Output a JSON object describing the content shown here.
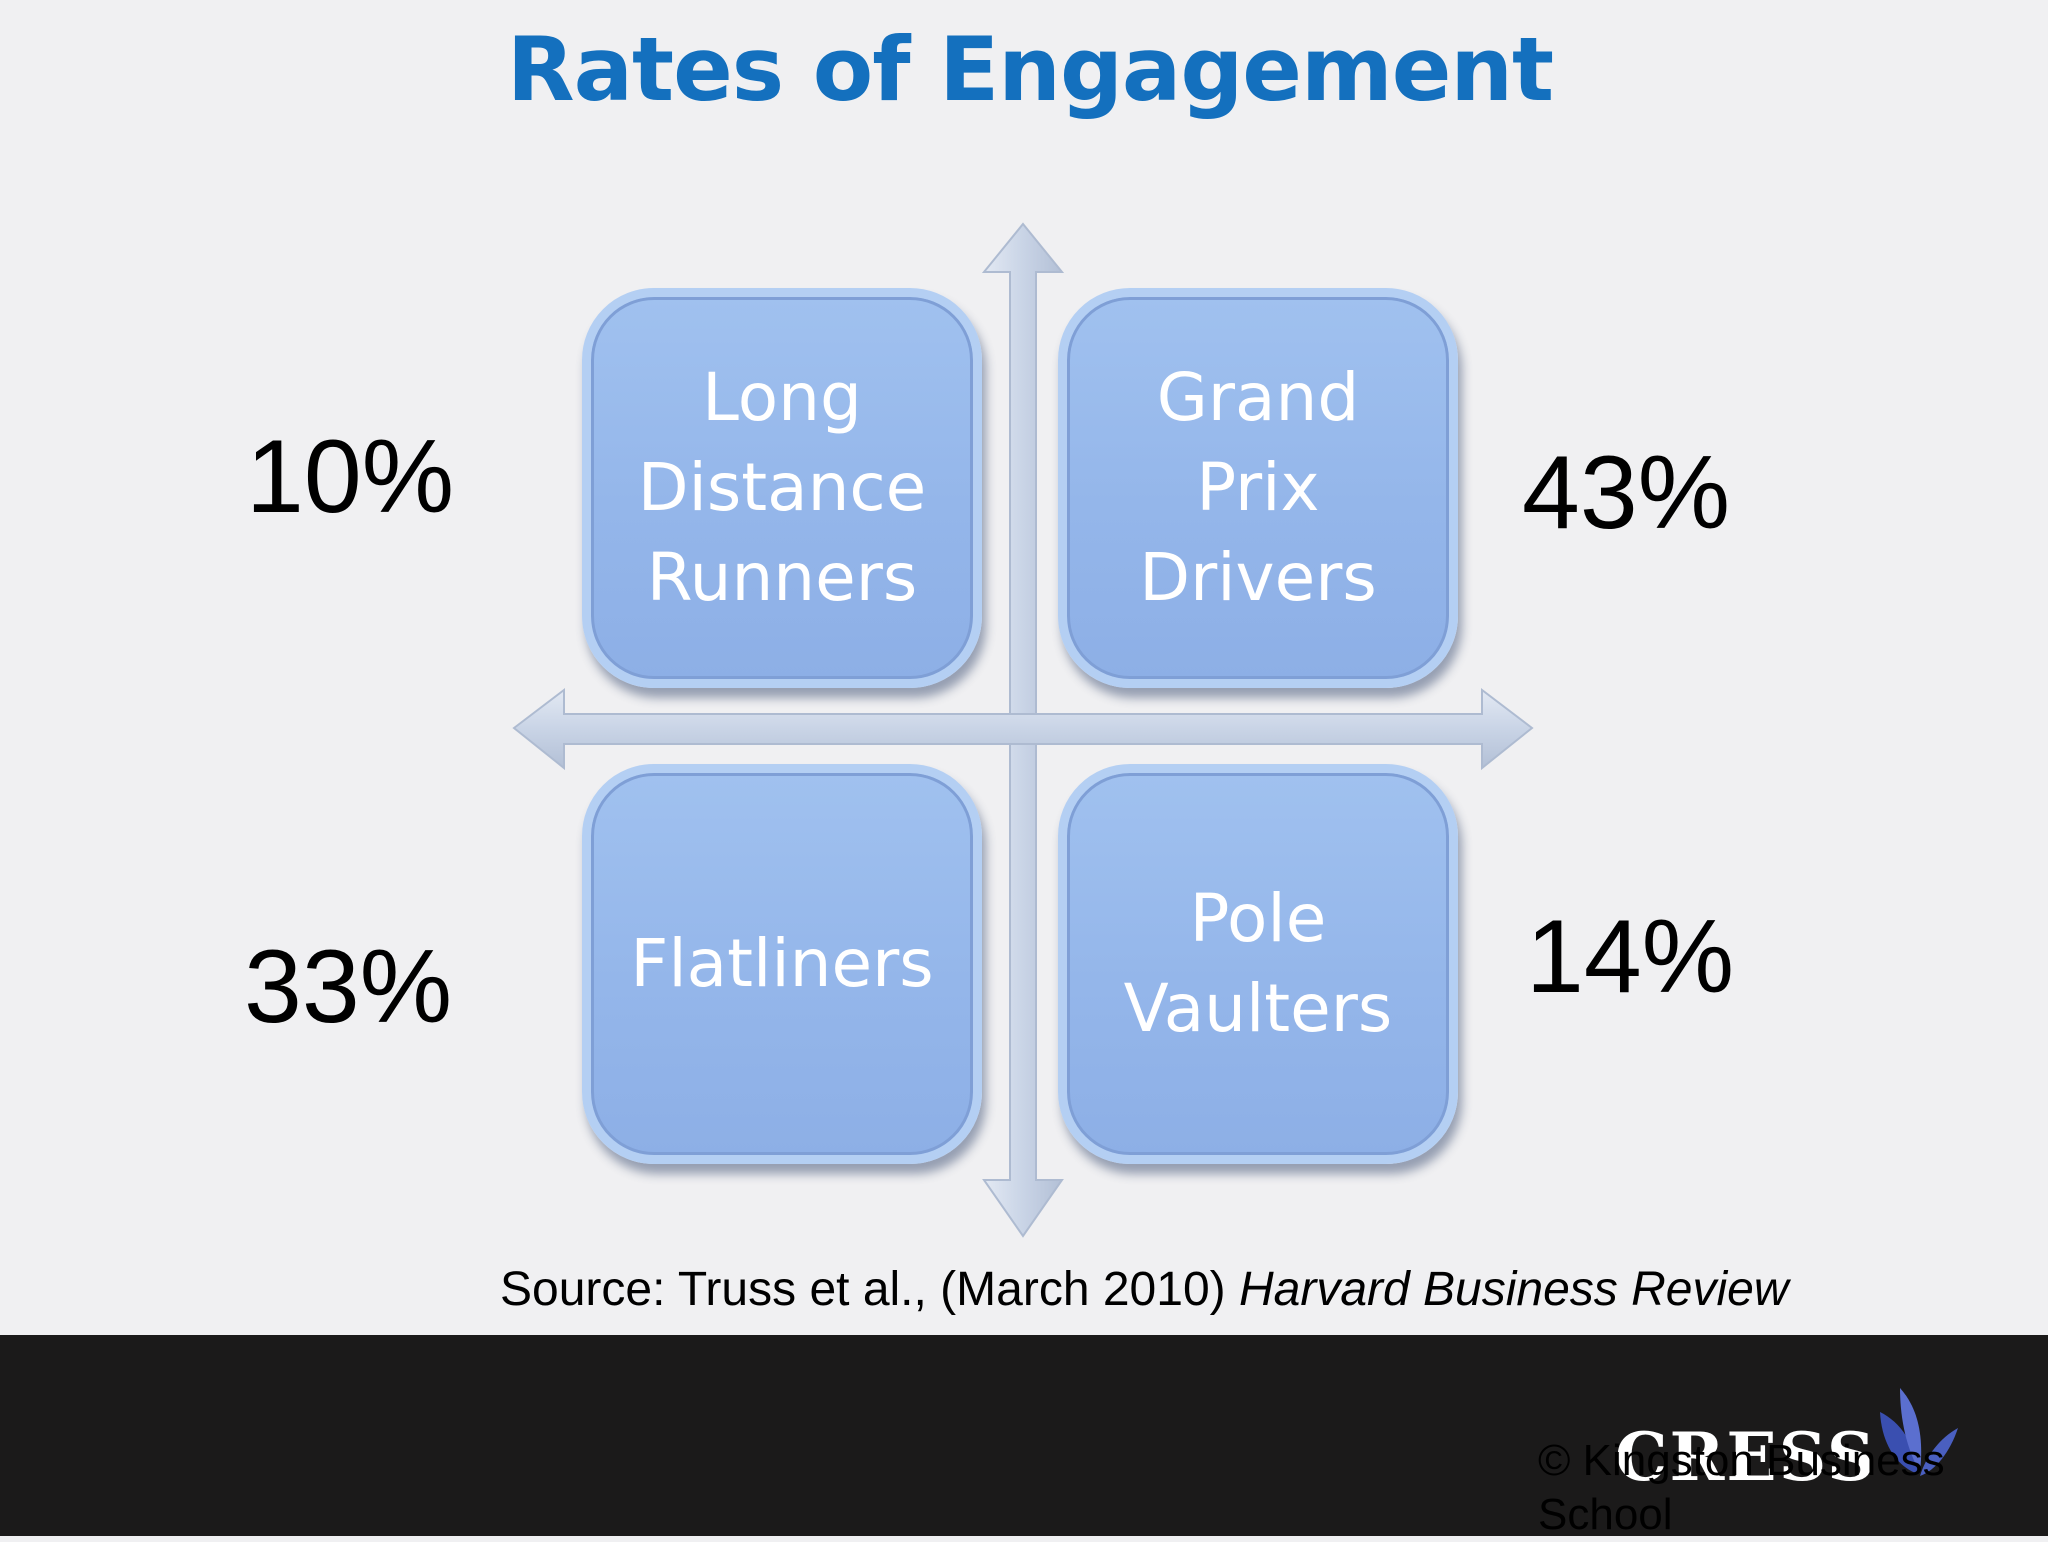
{
  "slide": {
    "title": "Rates of Engagement",
    "quadrants": {
      "top_left": {
        "lines": [
          "Long",
          "Distance",
          "Runners"
        ],
        "percent": "10%"
      },
      "top_right": {
        "lines": [
          "Grand",
          "Prix",
          "Drivers"
        ],
        "percent": "43%"
      },
      "bottom_left": {
        "lines": [
          "Flatliners"
        ],
        "percent": "33%"
      },
      "bottom_right": {
        "lines": [
          "Pole",
          "Vaulters"
        ],
        "percent": "14%"
      }
    },
    "source_prefix": "Source: Truss et al., (March 2010) ",
    "source_journal": "Harvard Business Review"
  },
  "footer": {
    "logo_text": "CRESS",
    "copyright": "© Kingston Business School"
  },
  "colors": {
    "title": "#1470be",
    "quadrant_fill": "#97b8eb",
    "footer_bg": "#1b1a1a"
  }
}
